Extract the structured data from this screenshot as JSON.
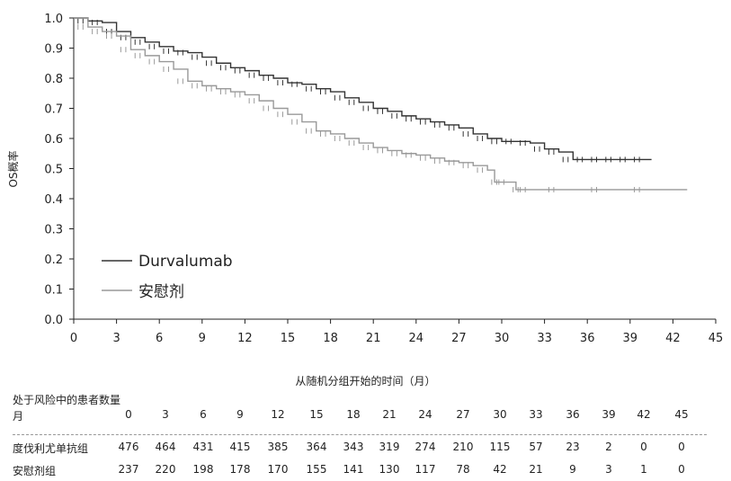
{
  "chart_data": {
    "type": "line",
    "xlabel": "从随机分组开始的时间（月）",
    "ylabel": "OS概率",
    "xlim": [
      0,
      45
    ],
    "ylim": [
      0.0,
      1.0
    ],
    "xticks": [
      0,
      3,
      6,
      9,
      12,
      15,
      18,
      21,
      24,
      27,
      30,
      33,
      36,
      39,
      42,
      45
    ],
    "yticks": [
      "0.0",
      "0.1",
      "0.2",
      "0.3",
      "0.4",
      "0.5",
      "0.6",
      "0.7",
      "0.8",
      "0.9",
      "1.0"
    ],
    "legend_position": "bottom-left",
    "series": [
      {
        "name": "Durvalumab",
        "color": "#333333",
        "x": [
          0,
          1,
          2,
          3,
          4,
          5,
          6,
          7,
          8,
          9,
          10,
          11,
          12,
          13,
          14,
          15,
          16,
          17,
          18,
          19,
          20,
          21,
          22,
          23,
          24,
          25,
          26,
          27,
          28,
          29,
          30,
          31,
          32,
          33,
          34,
          35,
          36,
          37,
          38,
          39,
          40.5
        ],
        "y": [
          1.0,
          0.99,
          0.985,
          0.955,
          0.935,
          0.92,
          0.905,
          0.89,
          0.885,
          0.87,
          0.85,
          0.835,
          0.825,
          0.81,
          0.8,
          0.785,
          0.78,
          0.765,
          0.755,
          0.735,
          0.72,
          0.7,
          0.69,
          0.675,
          0.665,
          0.655,
          0.645,
          0.635,
          0.615,
          0.6,
          0.59,
          0.59,
          0.585,
          0.565,
          0.555,
          0.53,
          0.53,
          0.53,
          0.53,
          0.53,
          0.53
        ]
      },
      {
        "name": "安慰剂",
        "color": "#999999",
        "x": [
          0,
          1,
          2,
          3,
          4,
          5,
          6,
          7,
          8,
          9,
          10,
          11,
          12,
          13,
          14,
          15,
          16,
          17,
          18,
          19,
          20,
          21,
          22,
          23,
          24,
          25,
          26,
          27,
          28,
          29,
          29.5,
          30.5,
          31,
          33,
          36,
          39,
          43
        ],
        "y": [
          1.0,
          0.97,
          0.955,
          0.94,
          0.895,
          0.875,
          0.855,
          0.83,
          0.79,
          0.775,
          0.765,
          0.755,
          0.745,
          0.725,
          0.7,
          0.68,
          0.655,
          0.625,
          0.615,
          0.6,
          0.585,
          0.57,
          0.56,
          0.55,
          0.545,
          0.535,
          0.525,
          0.52,
          0.51,
          0.495,
          0.455,
          0.455,
          0.43,
          0.43,
          0.43,
          0.43,
          0.43
        ]
      }
    ]
  },
  "risk_table": {
    "title": "处于风险中的患者数量",
    "header": {
      "label": "月",
      "values": [
        "0",
        "3",
        "6",
        "9",
        "12",
        "15",
        "18",
        "21",
        "24",
        "27",
        "30",
        "33",
        "36",
        "39",
        "42",
        "45"
      ]
    },
    "rows": [
      {
        "label": "度伐利尤单抗组",
        "values": [
          "476",
          "464",
          "431",
          "415",
          "385",
          "364",
          "343",
          "319",
          "274",
          "210",
          "115",
          "57",
          "23",
          "2",
          "0",
          "0"
        ]
      },
      {
        "label": "安慰剂组",
        "values": [
          "237",
          "220",
          "198",
          "178",
          "170",
          "155",
          "141",
          "130",
          "117",
          "78",
          "42",
          "21",
          "9",
          "3",
          "1",
          "0"
        ]
      }
    ]
  }
}
